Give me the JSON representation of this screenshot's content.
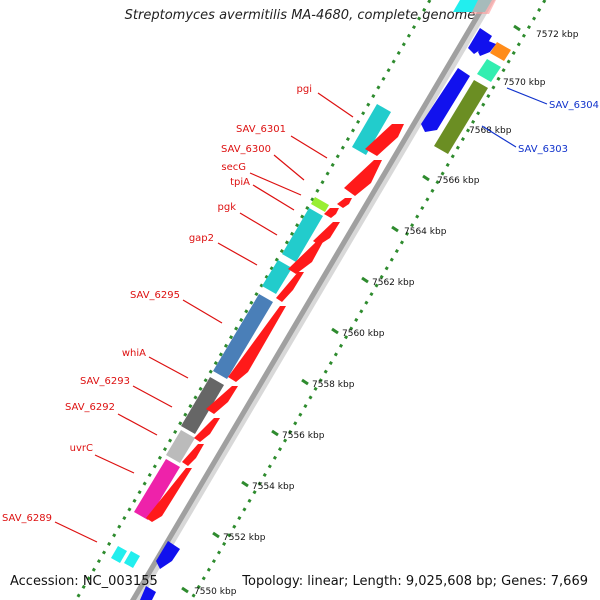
{
  "title": "Streptomyces avermitilis MA-4680, complete genome",
  "footer": {
    "accession": "Accession: NC_003155",
    "topology": "Topology: linear; Length: 9,025,608 bp; Genes: 7,669"
  },
  "colors": {
    "backbone": "#999999",
    "tick": "#2e8b2e",
    "tick_label": "#111111",
    "left_label": "#dd1111",
    "right_label": "#1133cc",
    "forward_gene": "#ff1a1a",
    "reverse_gene": "#1111ee"
  },
  "scale_labels": [
    "7550 kbp",
    "7552 kbp",
    "7554 kbp",
    "7556 kbp",
    "7558 kbp",
    "7560 kbp",
    "7562 kbp",
    "7564 kbp",
    "7566 kbp",
    "7568 kbp",
    "7570 kbp",
    "7572 kbp"
  ],
  "left_labels": [
    "pgi",
    "SAV_6301",
    "SAV_6300",
    "secG",
    "tpiA",
    "pgk",
    "gap2",
    "SAV_6295",
    "whiA",
    "SAV_6293",
    "SAV_6292",
    "uvrC",
    "SAV_6289"
  ],
  "right_labels": [
    "SAV_6304",
    "SAV_6303"
  ],
  "tracks": {
    "annotation_colors": [
      "#22cccc",
      "#22cccc",
      "#99ee33",
      "#22cccc",
      "#22cccc",
      "#4a7fb8",
      "#666666",
      "#bbbbbb",
      "#ee22aa",
      "#22eeee",
      "#22eeee",
      "#ff8c1a",
      "#33eeb0",
      "#6b8e23",
      "#ff9999"
    ],
    "gene_strand_colors": [
      "forward-red",
      "reverse-blue"
    ]
  }
}
